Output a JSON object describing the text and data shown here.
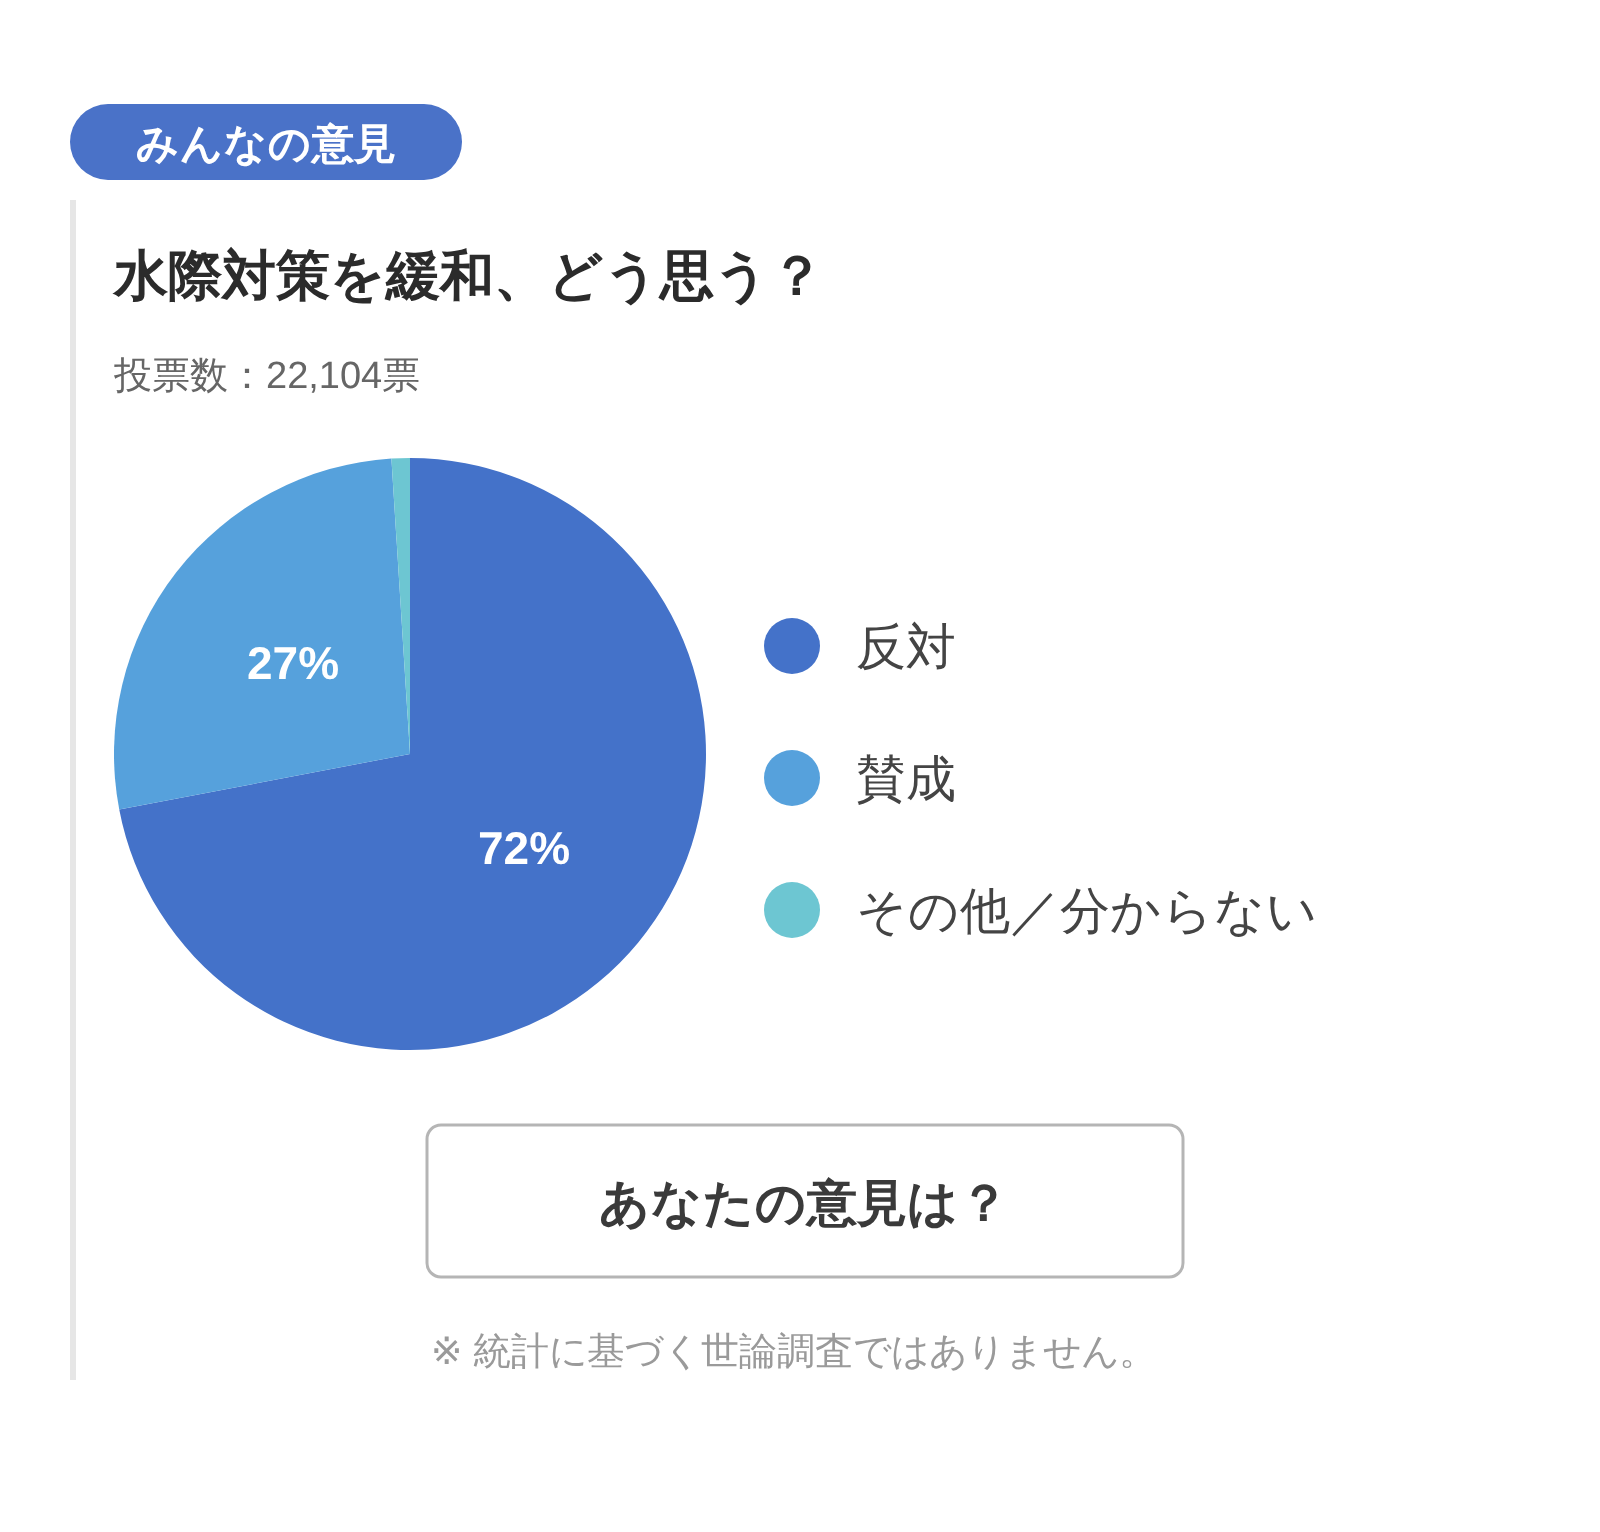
{
  "chart_data": {
    "type": "pie",
    "title": "水際対策を緩和、どう思う？",
    "subtitle": "投票数：22,104票",
    "categories": [
      "反対",
      "賛成",
      "その他／分からない"
    ],
    "values": [
      72,
      27,
      1
    ],
    "colors": [
      "#4472c9",
      "#56a1dc",
      "#6dc6d2"
    ],
    "value_labels": [
      "72%",
      "27%",
      null
    ],
    "legend": "right",
    "annotations": [
      "みんなの意見",
      "あなたの意見は？",
      "※ 統計に基づく世論調査ではありません。"
    ]
  }
}
